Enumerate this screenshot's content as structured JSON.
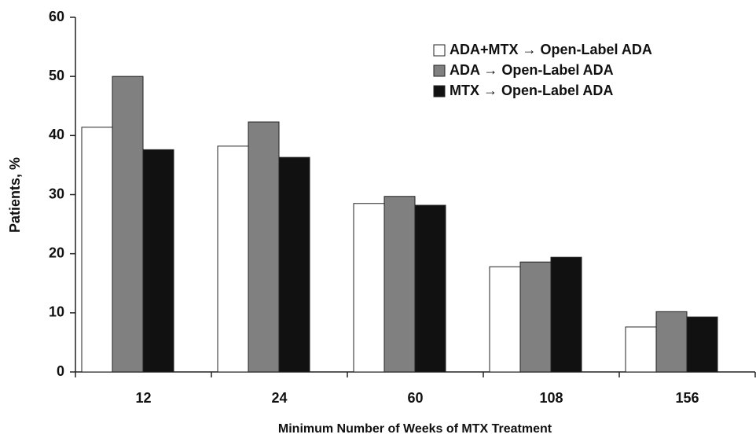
{
  "chart_data": {
    "type": "bar",
    "x_label": "Minimum Number of Weeks of MTX Treatment",
    "y_label": "Patients, %",
    "categories": [
      "12",
      "24",
      "60",
      "108",
      "156"
    ],
    "series": [
      {
        "name": "ADA+MTX → Open-Label ADA",
        "color": "#ffffff",
        "values": [
          41.4,
          38.2,
          28.5,
          17.8,
          7.6
        ]
      },
      {
        "name": "ADA → Open-Label ADA",
        "color": "#808080",
        "values": [
          50.0,
          42.3,
          29.7,
          18.6,
          10.2
        ]
      },
      {
        "name": "MTX → Open-Label ADA",
        "color": "#111111",
        "values": [
          37.6,
          36.3,
          28.2,
          19.4,
          9.3
        ]
      }
    ],
    "ylim": [
      0,
      60
    ],
    "yticks": [
      0,
      10,
      20,
      30,
      40,
      50,
      60
    ],
    "grid": false,
    "legend": "top-right"
  }
}
